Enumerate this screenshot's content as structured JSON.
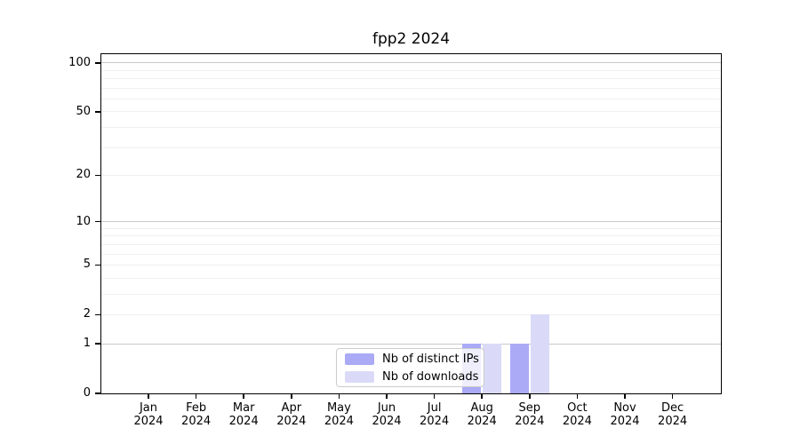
{
  "chart_data": {
    "type": "bar",
    "title": "fpp2 2024",
    "scale": "log1p",
    "grid": "horizontal",
    "ylim": [
      0,
      113
    ],
    "yticks": [
      0,
      1,
      2,
      5,
      10,
      20,
      50,
      100
    ],
    "major_grid": [
      1,
      10,
      100
    ],
    "minor_grid": [
      2,
      3,
      4,
      5,
      6,
      7,
      8,
      9,
      20,
      30,
      40,
      50,
      60,
      70,
      80,
      90
    ],
    "categories": [
      {
        "month": "Jan",
        "year": "2024"
      },
      {
        "month": "Feb",
        "year": "2024"
      },
      {
        "month": "Mar",
        "year": "2024"
      },
      {
        "month": "Apr",
        "year": "2024"
      },
      {
        "month": "May",
        "year": "2024"
      },
      {
        "month": "Jun",
        "year": "2024"
      },
      {
        "month": "Jul",
        "year": "2024"
      },
      {
        "month": "Aug",
        "year": "2024"
      },
      {
        "month": "Sep",
        "year": "2024"
      },
      {
        "month": "Oct",
        "year": "2024"
      },
      {
        "month": "Nov",
        "year": "2024"
      },
      {
        "month": "Dec",
        "year": "2024"
      }
    ],
    "series": [
      {
        "name": "Nb of distinct IPs",
        "color": "#aaaaf6",
        "values": [
          0,
          0,
          0,
          0,
          0,
          0,
          0,
          1,
          1,
          0,
          0,
          0
        ]
      },
      {
        "name": "Nb of downloads",
        "color": "#dadaf8",
        "values": [
          0,
          0,
          0,
          0,
          0,
          0,
          0,
          1,
          2,
          0,
          0,
          0
        ]
      }
    ],
    "legend_position": "lower center",
    "colors": {
      "axis": "#000000",
      "major_gridline": "#c9c9c9",
      "minor_gridline": "#f0f0f0",
      "legend_border": "#cccccc"
    }
  }
}
